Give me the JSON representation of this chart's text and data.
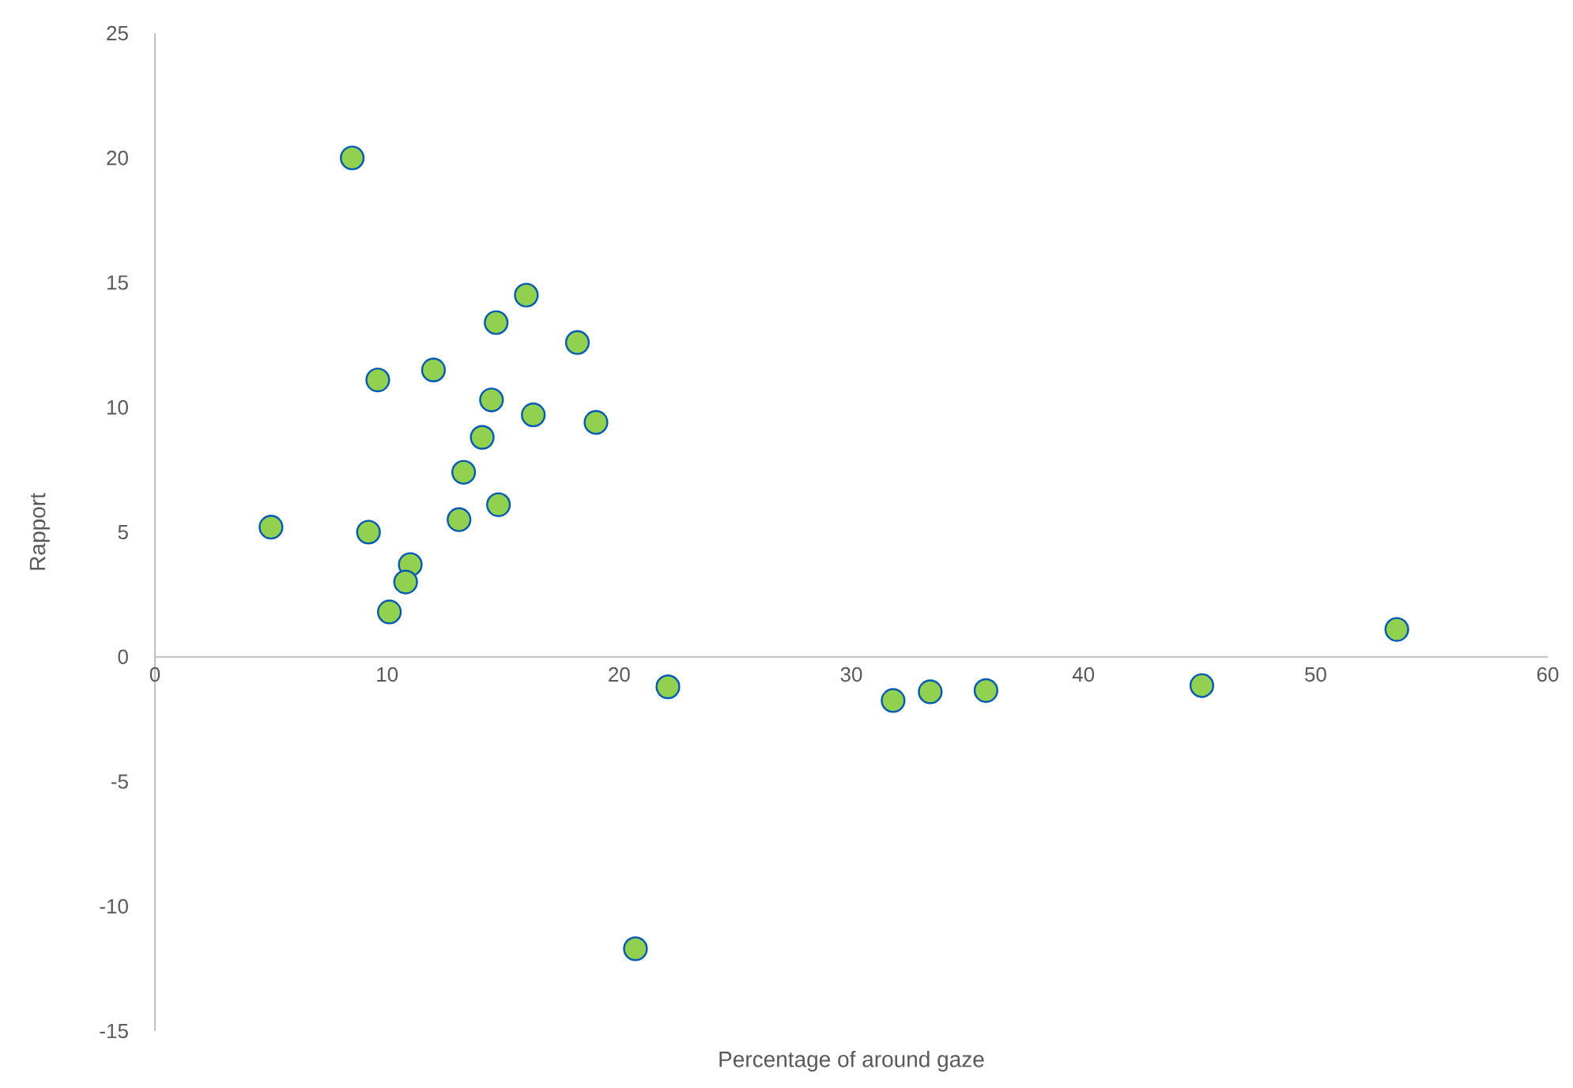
{
  "chart_data": {
    "type": "scatter",
    "xlabel": "Percentage of around gaze",
    "ylabel": "Rapport",
    "x": [
      8.5,
      16.0,
      14.7,
      18.2,
      12.0,
      9.6,
      14.5,
      16.3,
      19.0,
      14.1,
      13.3,
      14.8,
      13.1,
      5.0,
      9.2,
      11.0,
      10.8,
      10.1,
      22.1,
      20.7,
      31.8,
      33.4,
      35.8,
      45.1,
      53.5
    ],
    "values": [
      20.0,
      14.5,
      13.4,
      12.6,
      11.5,
      11.1,
      10.3,
      9.7,
      9.4,
      8.8,
      7.4,
      6.1,
      5.5,
      5.2,
      5.0,
      3.7,
      3.0,
      1.8,
      -1.2,
      -11.7,
      -1.75,
      -1.4,
      -1.35,
      -1.15,
      1.1
    ],
    "color": "#92d050",
    "marker": "circle",
    "xlim": [
      0,
      60
    ],
    "xticks": [
      0,
      10,
      20,
      30,
      40,
      50,
      60
    ],
    "ylim": [
      -15,
      25
    ],
    "yticks": [
      -15,
      -10,
      -5,
      0,
      5,
      10,
      15,
      20,
      25
    ]
  }
}
